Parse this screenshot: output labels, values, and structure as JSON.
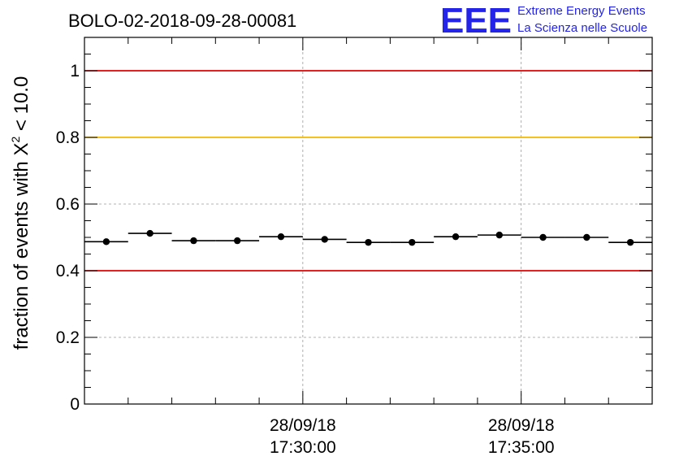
{
  "title": "BOLO-02-2018-09-28-00081",
  "logo": {
    "mark": "EEE",
    "line1": "Extreme Energy Events",
    "line2": "La Scienza nelle Scuole",
    "color": "#2424e8"
  },
  "chart_data": {
    "type": "scatter",
    "title": "BOLO-02-2018-09-28-00081",
    "ylabel": "fraction of events with",
    "ylabel_chi": "X",
    "ylabel_exp": "2",
    "ylabel_tail": " < 10.0",
    "xlabel": "",
    "ylim": [
      0,
      1.1
    ],
    "yticks": [
      0,
      0.2,
      0.4,
      0.6,
      0.8,
      1
    ],
    "ytick_labels": [
      "0",
      "0.2",
      "0.4",
      "0.6",
      "0.8",
      "1"
    ],
    "xlim": [
      "2018-09-28 17:25:00",
      "2018-09-28 17:38:00"
    ],
    "xticks": [
      {
        "time": "2018-09-28 17:30:00",
        "date_label": "28/09/18",
        "time_label": "17:30:00"
      },
      {
        "time": "2018-09-28 17:35:00",
        "date_label": "28/09/18",
        "time_label": "17:35:00"
      }
    ],
    "minor_tick_step_minutes": 1,
    "grid": true,
    "reference_lines": [
      {
        "y": 1.0,
        "color": "#e00000"
      },
      {
        "y": 0.8,
        "color": "#f5b800"
      },
      {
        "y": 0.4,
        "color": "#e00000"
      }
    ],
    "points": [
      {
        "x": "2018-09-28 17:25:30",
        "x_start": "2018-09-28 17:25:00",
        "x_end": "2018-09-28 17:26:00",
        "y": 0.487
      },
      {
        "x": "2018-09-28 17:26:30",
        "x_start": "2018-09-28 17:26:00",
        "x_end": "2018-09-28 17:27:00",
        "y": 0.512
      },
      {
        "x": "2018-09-28 17:27:30",
        "x_start": "2018-09-28 17:27:00",
        "x_end": "2018-09-28 17:28:00",
        "y": 0.49
      },
      {
        "x": "2018-09-28 17:28:30",
        "x_start": "2018-09-28 17:28:00",
        "x_end": "2018-09-28 17:29:00",
        "y": 0.49
      },
      {
        "x": "2018-09-28 17:29:30",
        "x_start": "2018-09-28 17:29:00",
        "x_end": "2018-09-28 17:30:00",
        "y": 0.502
      },
      {
        "x": "2018-09-28 17:30:30",
        "x_start": "2018-09-28 17:30:00",
        "x_end": "2018-09-28 17:31:00",
        "y": 0.494
      },
      {
        "x": "2018-09-28 17:31:30",
        "x_start": "2018-09-28 17:31:00",
        "x_end": "2018-09-28 17:32:00",
        "y": 0.485
      },
      {
        "x": "2018-09-28 17:32:30",
        "x_start": "2018-09-28 17:32:00",
        "x_end": "2018-09-28 17:33:00",
        "y": 0.485
      },
      {
        "x": "2018-09-28 17:33:30",
        "x_start": "2018-09-28 17:33:00",
        "x_end": "2018-09-28 17:34:00",
        "y": 0.502
      },
      {
        "x": "2018-09-28 17:34:30",
        "x_start": "2018-09-28 17:34:00",
        "x_end": "2018-09-28 17:35:00",
        "y": 0.507
      },
      {
        "x": "2018-09-28 17:35:30",
        "x_start": "2018-09-28 17:35:00",
        "x_end": "2018-09-28 17:36:00",
        "y": 0.5
      },
      {
        "x": "2018-09-28 17:36:30",
        "x_start": "2018-09-28 17:36:00",
        "x_end": "2018-09-28 17:37:00",
        "y": 0.5
      },
      {
        "x": "2018-09-28 17:37:30",
        "x_start": "2018-09-28 17:37:00",
        "x_end": "2018-09-28 17:38:00",
        "y": 0.485
      }
    ],
    "marker_color": "#000000"
  }
}
